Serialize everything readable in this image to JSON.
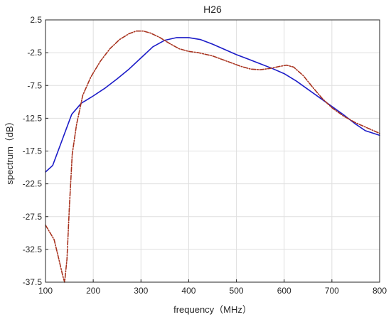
{
  "chart_data": {
    "type": "line",
    "title": "H26",
    "xlabel": "frequency（MHz）",
    "ylabel": "spectrum（dB）",
    "xlim": [
      100,
      800
    ],
    "ylim": [
      -37.5,
      2.5
    ],
    "xticks": [
      100,
      200,
      300,
      400,
      500,
      600,
      700,
      800
    ],
    "yticks": [
      2.5,
      -2.5,
      -7.5,
      -12.5,
      -17.5,
      -22.5,
      -27.5,
      -32.5,
      -37.5
    ],
    "xtick_labels": [
      "100",
      "200",
      "300",
      "400",
      "500",
      "600",
      "700",
      "800"
    ],
    "ytick_labels": [
      "2.5",
      "-2.5",
      "-7.5",
      "-12.5",
      "-17.5",
      "-22.5",
      "-27.5",
      "-32.5",
      "-37.5"
    ],
    "grid": true,
    "legend": "none",
    "series": [
      {
        "style": "solid",
        "color": "#1c1cc8",
        "x": [
          100,
          115,
          130,
          140,
          155,
          175,
          200,
          225,
          250,
          275,
          300,
          325,
          350,
          375,
          400,
          425,
          450,
          475,
          500,
          525,
          550,
          575,
          600,
          625,
          650,
          675,
          700,
          725,
          750,
          770,
          800
        ],
        "y": [
          -20.7,
          -19.7,
          -16.8,
          -14.8,
          -11.9,
          -10.2,
          -9.1,
          -7.9,
          -6.5,
          -5.0,
          -3.3,
          -1.6,
          -0.6,
          -0.2,
          -0.2,
          -0.5,
          -1.2,
          -2.0,
          -2.8,
          -3.5,
          -4.2,
          -4.9,
          -5.7,
          -6.8,
          -8.1,
          -9.4,
          -10.7,
          -12.0,
          -13.4,
          -14.4,
          -15.1
        ]
      },
      {
        "style": "dashdot",
        "color": "#a8331f",
        "x": [
          100,
          118,
          128,
          136,
          140,
          145,
          150,
          156,
          165,
          178,
          195,
          215,
          235,
          255,
          275,
          290,
          305,
          320,
          340,
          360,
          380,
          400,
          420,
          450,
          480,
          510,
          530,
          550,
          570,
          590,
          605,
          620,
          640,
          660,
          680,
          700,
          725,
          750,
          775,
          800
        ],
        "y": [
          -28.8,
          -31.0,
          -34.0,
          -36.5,
          -37.5,
          -34.0,
          -26.0,
          -18.0,
          -13.5,
          -9.0,
          -6.2,
          -3.8,
          -1.9,
          -0.5,
          0.4,
          0.8,
          0.8,
          0.5,
          -0.2,
          -1.1,
          -1.9,
          -2.3,
          -2.5,
          -3.0,
          -3.8,
          -4.6,
          -5.0,
          -5.1,
          -4.9,
          -4.6,
          -4.4,
          -4.7,
          -6.0,
          -7.8,
          -9.5,
          -10.9,
          -12.2,
          -13.2,
          -14.0,
          -14.8
        ]
      }
    ]
  }
}
